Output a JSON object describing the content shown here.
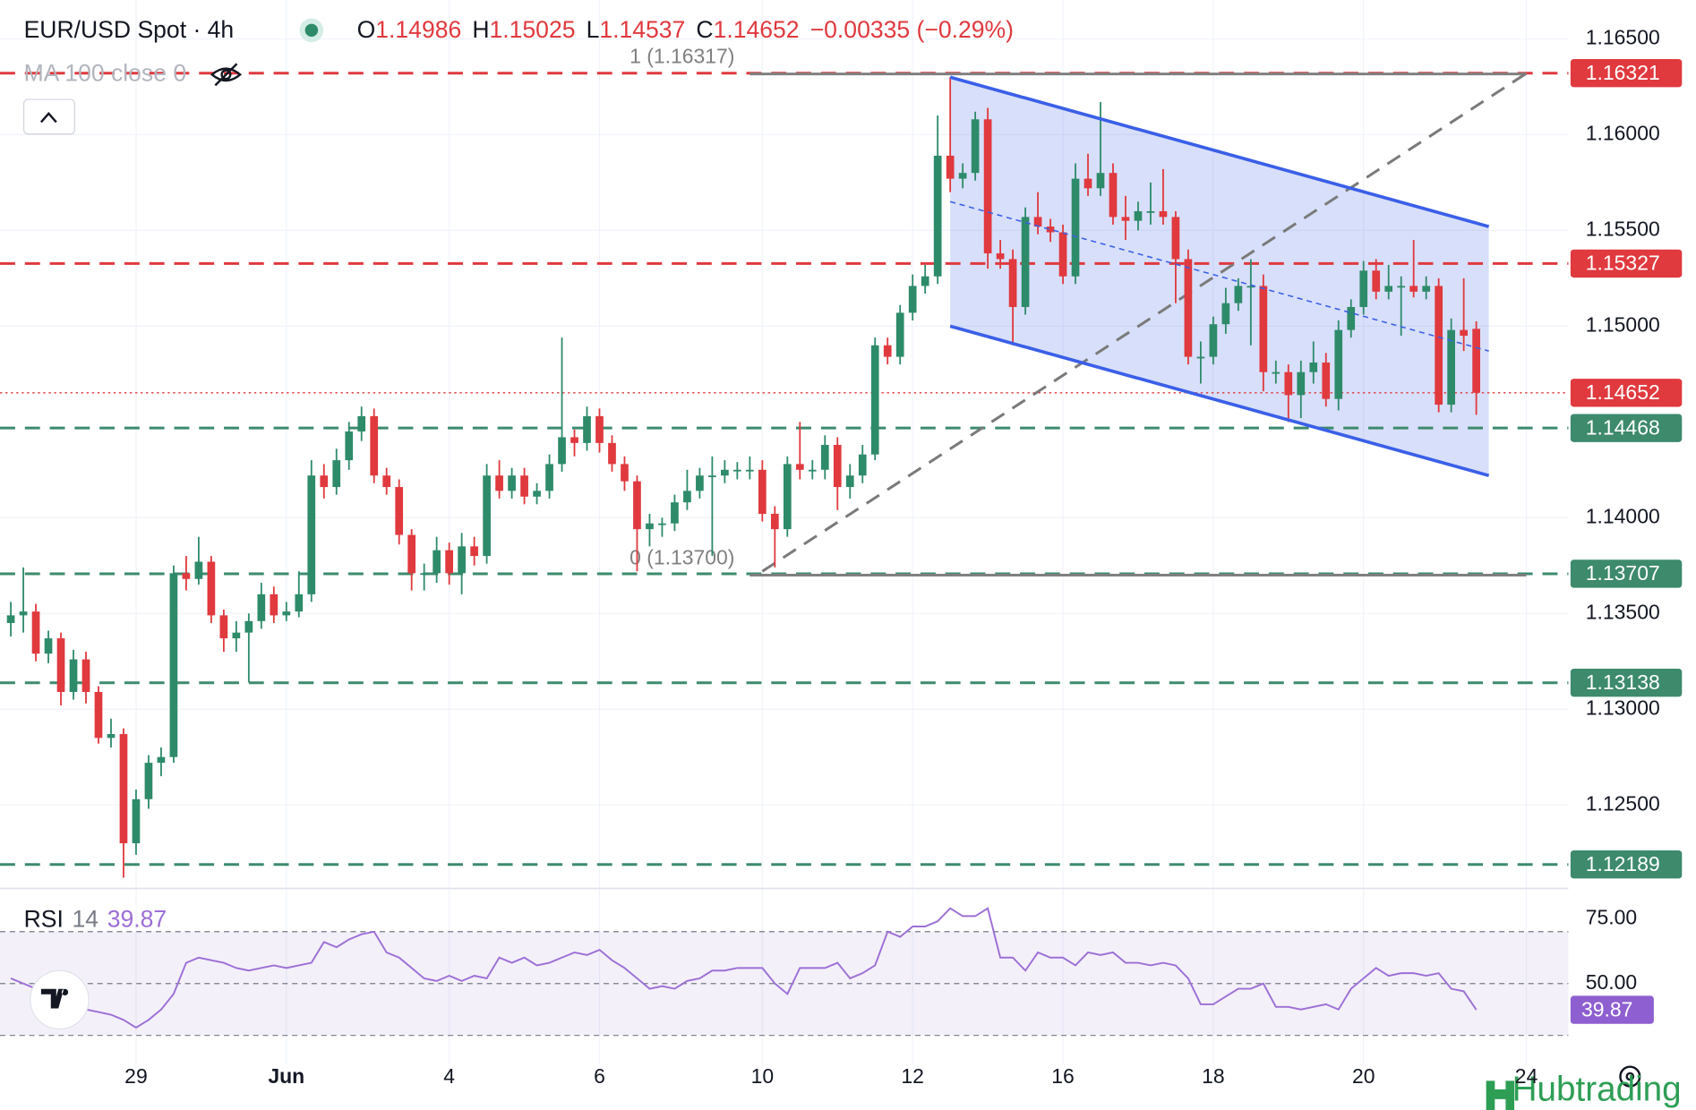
{
  "chart_data": {
    "type": "candlestick",
    "title": "EUR/USD Spot · 4h",
    "ohlc_labels": [
      "O",
      "H",
      "L",
      "C"
    ],
    "change": "−0.00335 (−0.29%)",
    "indicator_label": "MA 100 close 0",
    "watermark": "Hubtrading",
    "up_color": "#2e8b6a",
    "down_color": "#e0393e",
    "grid": true,
    "ylim": [
      1.12064,
      1.16703
    ],
    "yticks": [
      {
        "value": 1.165,
        "label": "1.16500"
      },
      {
        "value": 1.16,
        "label": "1.16000"
      },
      {
        "value": 1.155,
        "label": "1.15500"
      },
      {
        "value": 1.15,
        "label": "1.15000"
      },
      {
        "value": 1.14,
        "label": "1.14000"
      },
      {
        "value": 1.135,
        "label": "1.13500"
      },
      {
        "value": 1.13,
        "label": "1.13000"
      },
      {
        "value": 1.125,
        "label": "1.12500"
      }
    ],
    "categories": [
      null,
      null,
      null,
      null,
      null,
      null,
      null,
      null,
      null,
      null,
      "29",
      null,
      null,
      null,
      null,
      null,
      null,
      null,
      null,
      null,
      null,
      null,
      "Jun",
      null,
      null,
      null,
      null,
      null,
      null,
      null,
      null,
      null,
      null,
      null,
      null,
      "4",
      null,
      null,
      null,
      null,
      null,
      null,
      null,
      null,
      null,
      null,
      null,
      "6",
      null,
      null,
      null,
      null,
      null,
      null,
      null,
      null,
      null,
      null,
      null,
      null,
      "10",
      null,
      null,
      null,
      null,
      null,
      null,
      null,
      null,
      null,
      null,
      null,
      "12",
      null,
      null,
      null,
      null,
      null,
      null,
      null,
      null,
      null,
      null,
      null,
      "16",
      null,
      null,
      null,
      null,
      null,
      null,
      null,
      null,
      null,
      null,
      null,
      "18",
      null,
      null,
      null,
      null,
      null,
      null,
      null,
      null,
      null,
      null,
      null,
      "20",
      null,
      null,
      null,
      null,
      null,
      null,
      null,
      null,
      null,
      null,
      null,
      null,
      "24"
    ],
    "candles": [
      [
        1.1345,
        1.1356,
        1.1338,
        1.1349
      ],
      [
        1.1349,
        1.1374,
        1.134,
        1.1351
      ],
      [
        1.1351,
        1.1355,
        1.1325,
        1.1329
      ],
      [
        1.1329,
        1.1341,
        1.1324,
        1.1337
      ],
      [
        1.1337,
        1.134,
        1.1302,
        1.1309
      ],
      [
        1.1309,
        1.1331,
        1.1305,
        1.1326
      ],
      [
        1.1326,
        1.133,
        1.1303,
        1.1309
      ],
      [
        1.1309,
        1.1312,
        1.1282,
        1.1285
      ],
      [
        1.1285,
        1.1295,
        1.128,
        1.1287
      ],
      [
        1.1287,
        1.129,
        1.1212,
        1.123
      ],
      [
        1.123,
        1.1258,
        1.1224,
        1.1253
      ],
      [
        1.1253,
        1.1276,
        1.1248,
        1.1272
      ],
      [
        1.1272,
        1.128,
        1.1265,
        1.1275
      ],
      [
        1.1275,
        1.1375,
        1.1272,
        1.1371
      ],
      [
        1.1371,
        1.138,
        1.1362,
        1.1368
      ],
      [
        1.1368,
        1.139,
        1.1365,
        1.1377
      ],
      [
        1.1377,
        1.138,
        1.1345,
        1.1349
      ],
      [
        1.1349,
        1.1352,
        1.133,
        1.1337
      ],
      [
        1.1337,
        1.1346,
        1.133,
        1.134
      ],
      [
        1.134,
        1.135,
        1.1314,
        1.1346
      ],
      [
        1.1346,
        1.1366,
        1.1342,
        1.136
      ],
      [
        1.136,
        1.1364,
        1.1345,
        1.1349
      ],
      [
        1.1349,
        1.1356,
        1.1346,
        1.1351
      ],
      [
        1.1351,
        1.1372,
        1.1348,
        1.136
      ],
      [
        1.136,
        1.143,
        1.1356,
        1.1422
      ],
      [
        1.1422,
        1.1428,
        1.141,
        1.1416
      ],
      [
        1.1416,
        1.1436,
        1.1412,
        1.143
      ],
      [
        1.143,
        1.145,
        1.1425,
        1.1445
      ],
      [
        1.1445,
        1.1458,
        1.144,
        1.1453
      ],
      [
        1.1453,
        1.1457,
        1.1418,
        1.1422
      ],
      [
        1.1422,
        1.1426,
        1.1412,
        1.1416
      ],
      [
        1.1416,
        1.142,
        1.1386,
        1.1391
      ],
      [
        1.1391,
        1.1394,
        1.1362,
        1.1371
      ],
      [
        1.1371,
        1.1376,
        1.1362,
        1.1371
      ],
      [
        1.1371,
        1.139,
        1.1366,
        1.1383
      ],
      [
        1.1383,
        1.1387,
        1.1365,
        1.1371
      ],
      [
        1.1371,
        1.1392,
        1.136,
        1.1385
      ],
      [
        1.1385,
        1.139,
        1.1375,
        1.138
      ],
      [
        1.138,
        1.1428,
        1.1376,
        1.1422
      ],
      [
        1.1422,
        1.143,
        1.141,
        1.1414
      ],
      [
        1.1414,
        1.1426,
        1.141,
        1.1422
      ],
      [
        1.1422,
        1.1426,
        1.1407,
        1.1411
      ],
      [
        1.1411,
        1.1418,
        1.1407,
        1.1414
      ],
      [
        1.1414,
        1.1433,
        1.141,
        1.1428
      ],
      [
        1.1428,
        1.1494,
        1.1424,
        1.1442
      ],
      [
        1.1442,
        1.1446,
        1.1432,
        1.1439
      ],
      [
        1.1439,
        1.1458,
        1.1435,
        1.1453
      ],
      [
        1.1453,
        1.1457,
        1.1434,
        1.1439
      ],
      [
        1.1439,
        1.1443,
        1.1424,
        1.1428
      ],
      [
        1.1428,
        1.1432,
        1.1414,
        1.1419
      ],
      [
        1.1419,
        1.1422,
        1.1372,
        1.1394
      ],
      [
        1.1394,
        1.1402,
        1.1385,
        1.1397
      ],
      [
        1.1397,
        1.14,
        1.139,
        1.1397
      ],
      [
        1.1397,
        1.1412,
        1.1393,
        1.1408
      ],
      [
        1.1408,
        1.1425,
        1.1404,
        1.1414
      ],
      [
        1.1414,
        1.1426,
        1.141,
        1.1422
      ],
      [
        1.1422,
        1.1432,
        1.138,
        1.1422
      ],
      [
        1.1422,
        1.143,
        1.1418,
        1.1425
      ],
      [
        1.1425,
        1.1429,
        1.142,
        1.1425
      ],
      [
        1.1425,
        1.1432,
        1.142,
        1.1425
      ],
      [
        1.1425,
        1.143,
        1.1398,
        1.1402
      ],
      [
        1.1402,
        1.1406,
        1.1374,
        1.1394
      ],
      [
        1.1394,
        1.1432,
        1.139,
        1.1428
      ],
      [
        1.1428,
        1.145,
        1.142,
        1.1425
      ],
      [
        1.1425,
        1.143,
        1.142,
        1.1425
      ],
      [
        1.1425,
        1.1443,
        1.142,
        1.1438
      ],
      [
        1.1438,
        1.1442,
        1.1404,
        1.1416
      ],
      [
        1.1416,
        1.1428,
        1.141,
        1.1422
      ],
      [
        1.1422,
        1.1438,
        1.1418,
        1.1433
      ],
      [
        1.1433,
        1.1494,
        1.143,
        1.149
      ],
      [
        1.149,
        1.1494,
        1.148,
        1.1484
      ],
      [
        1.1484,
        1.1511,
        1.148,
        1.1507
      ],
      [
        1.1507,
        1.1527,
        1.1503,
        1.1521
      ],
      [
        1.1521,
        1.1532,
        1.1517,
        1.1526
      ],
      [
        1.1526,
        1.161,
        1.1522,
        1.1589
      ],
      [
        1.1589,
        1.163,
        1.157,
        1.1577
      ],
      [
        1.1577,
        1.1585,
        1.1572,
        1.158
      ],
      [
        1.158,
        1.1612,
        1.1576,
        1.1608
      ],
      [
        1.1608,
        1.1614,
        1.153,
        1.1538
      ],
      [
        1.1538,
        1.1545,
        1.153,
        1.1535
      ],
      [
        1.1535,
        1.154,
        1.149,
        1.151
      ],
      [
        1.151,
        1.1562,
        1.1506,
        1.1557
      ],
      [
        1.1557,
        1.157,
        1.1548,
        1.1552
      ],
      [
        1.1552,
        1.1556,
        1.1544,
        1.1549
      ],
      [
        1.1549,
        1.1553,
        1.1522,
        1.1526
      ],
      [
        1.1526,
        1.1585,
        1.1522,
        1.1577
      ],
      [
        1.1577,
        1.159,
        1.1568,
        1.1572
      ],
      [
        1.1572,
        1.1617,
        1.1568,
        1.158
      ],
      [
        1.158,
        1.1585,
        1.1553,
        1.1557
      ],
      [
        1.1557,
        1.1568,
        1.1545,
        1.1555
      ],
      [
        1.1555,
        1.1565,
        1.155,
        1.156
      ],
      [
        1.156,
        1.1575,
        1.1553,
        1.156
      ],
      [
        1.156,
        1.1582,
        1.1553,
        1.1557
      ],
      [
        1.1557,
        1.156,
        1.1512,
        1.1535
      ],
      [
        1.1535,
        1.154,
        1.148,
        1.1484
      ],
      [
        1.1484,
        1.1492,
        1.147,
        1.1484
      ],
      [
        1.1484,
        1.1505,
        1.148,
        1.1501
      ],
      [
        1.1501,
        1.152,
        1.1496,
        1.1512
      ],
      [
        1.1512,
        1.1525,
        1.1508,
        1.1521
      ],
      [
        1.1521,
        1.1535,
        1.149,
        1.1521
      ],
      [
        1.1521,
        1.1527,
        1.1466,
        1.1476
      ],
      [
        1.1476,
        1.1482,
        1.147,
        1.1476
      ],
      [
        1.1476,
        1.148,
        1.145,
        1.1464
      ],
      [
        1.1464,
        1.1482,
        1.1452,
        1.1476
      ],
      [
        1.1476,
        1.1492,
        1.147,
        1.1481
      ],
      [
        1.1481,
        1.1486,
        1.1458,
        1.1462
      ],
      [
        1.1462,
        1.1503,
        1.1456,
        1.1498
      ],
      [
        1.1498,
        1.1514,
        1.1494,
        1.151
      ],
      [
        1.151,
        1.1534,
        1.1506,
        1.1529
      ],
      [
        1.1529,
        1.1535,
        1.1514,
        1.1518
      ],
      [
        1.1518,
        1.1532,
        1.1514,
        1.1521
      ],
      [
        1.1521,
        1.1526,
        1.1495,
        1.1521
      ],
      [
        1.1521,
        1.1545,
        1.1515,
        1.1518
      ],
      [
        1.1518,
        1.1526,
        1.1514,
        1.1521
      ],
      [
        1.1521,
        1.1525,
        1.1455,
        1.1459
      ],
      [
        1.1459,
        1.1504,
        1.1455,
        1.1498
      ],
      [
        1.1498,
        1.1525,
        1.1487,
        1.1495
      ],
      [
        1.14986,
        1.15025,
        1.14537,
        1.14652
      ],
      null,
      null,
      null,
      null
    ],
    "levels": [
      {
        "value": 1.16321,
        "color": "#e0393e",
        "style": "dash"
      },
      {
        "value": 1.15327,
        "color": "#e0393e",
        "style": "dash"
      },
      {
        "value": 1.14652,
        "color": "#e0393e",
        "style": "dot"
      },
      {
        "value": 1.14468,
        "color": "#3d8a6d",
        "style": "dash"
      },
      {
        "value": 1.13707,
        "color": "#3d8a6d",
        "style": "dash"
      },
      {
        "value": 1.13138,
        "color": "#3d8a6d",
        "style": "dash"
      },
      {
        "value": 1.12189,
        "color": "#3d8a6d",
        "style": "dash"
      }
    ],
    "fib": {
      "from": 59,
      "to": 121,
      "color": "#808080",
      "levels": [
        {
          "level": 1,
          "price": 1.16317,
          "label": "1 (1.16317)"
        },
        {
          "level": 0,
          "price": 1.137,
          "label": "0 (1.13700)"
        }
      ]
    },
    "channel": {
      "from": 75,
      "to": 118,
      "upper": [
        1.163,
        1.1552
      ],
      "lower": [
        1.15,
        1.1422
      ],
      "color": "#3a5fe8"
    },
    "trendline": {
      "from": 60,
      "to": 121,
      "values": [
        1.1372,
        1.1632
      ],
      "color": "#7a7a7a"
    },
    "rsi": {
      "name": "RSI",
      "length": 14,
      "color": "#9c6fd6",
      "ylim": [
        18.75,
        83.33
      ],
      "yticks": [
        {
          "value": 75,
          "label": "75.00"
        },
        {
          "value": 50,
          "label": "50.00"
        }
      ],
      "levels": [
        70,
        50,
        30
      ],
      "values": [
        52,
        50,
        48,
        45,
        44,
        42,
        40,
        39,
        38,
        36,
        33,
        36,
        40,
        46,
        58,
        60,
        59,
        58,
        56,
        55,
        56,
        57,
        56,
        57,
        58,
        66,
        64,
        67,
        69,
        70,
        62,
        60,
        56,
        52,
        51,
        53,
        51,
        53,
        52,
        60,
        58,
        60,
        57,
        58,
        60,
        62,
        61,
        63,
        59,
        56,
        52,
        48,
        49,
        48,
        51,
        52,
        55,
        55,
        56,
        56,
        56,
        50,
        46,
        56,
        56,
        56,
        58,
        52,
        54,
        57,
        70,
        68,
        72,
        72,
        74,
        79,
        76,
        76,
        79,
        60,
        60,
        55,
        62,
        60,
        60,
        57,
        62,
        61,
        62,
        58,
        58,
        57,
        58,
        57,
        52,
        42,
        42,
        45,
        48,
        48,
        50,
        41,
        41,
        40,
        41,
        42,
        40,
        48,
        52,
        56,
        53,
        54,
        54,
        53,
        54,
        48,
        47,
        39.87,
        null,
        null,
        null,
        null
      ]
    }
  }
}
